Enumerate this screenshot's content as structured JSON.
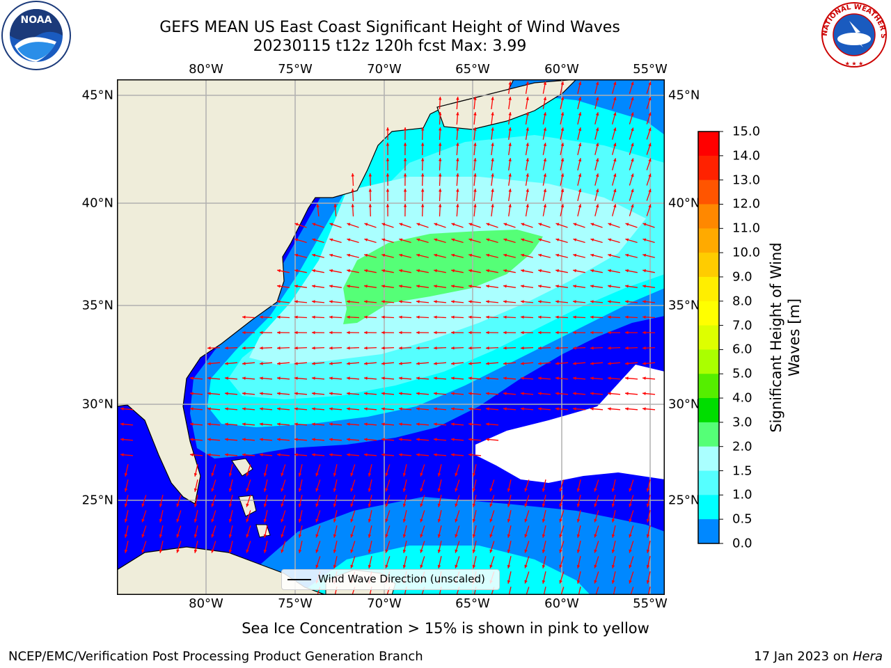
{
  "title": {
    "line1": "GEFS MEAN US East Coast Significant Height of Wind Waves",
    "line2": "20230115 t12z 120h fcst   Max: 3.99"
  },
  "axes": {
    "lon_labels": [
      "80°W",
      "75°W",
      "70°W",
      "65°W",
      "60°W",
      "55°W"
    ],
    "lat_labels": [
      "45°N",
      "40°N",
      "35°N",
      "30°N",
      "25°N"
    ]
  },
  "colorbar": {
    "title": "Significant Height of Wind Waves [m]",
    "title_line1": "Significant Height of Wind",
    "title_line2": "Waves [m]",
    "ticks": [
      "15.0",
      "14.0",
      "13.0",
      "12.0",
      "11.0",
      "10.0",
      "9.0",
      "8.0",
      "7.0",
      "6.0",
      "5.0",
      "4.0",
      "3.0",
      "2.0",
      "1.5",
      "1.0",
      "0.5",
      "0.0"
    ],
    "colors": [
      "#ff0000",
      "#ff2200",
      "#ff5500",
      "#ff8800",
      "#ffaa00",
      "#ffcc00",
      "#ffee00",
      "#ffff00",
      "#ddff00",
      "#aaff00",
      "#55ee00",
      "#00dd00",
      "#55ff77",
      "#aaffff",
      "#55ffff",
      "#00ffff",
      "#0088ff",
      "#0000ff"
    ]
  },
  "legend": {
    "label": "Wind Wave Direction (unscaled)"
  },
  "caption": "Sea Ice Concentration > 15% is shown in pink to yellow",
  "footer": {
    "left": "NCEP/EMC/Verification Post Processing Product Generation Branch",
    "right_prefix": "17 Jan 2023 on ",
    "right_italic": "Hera"
  },
  "logos": {
    "left": "NOAA",
    "right": "NATIONAL WEATHER SERVICE"
  },
  "map_colors": {
    "land": "#efedda",
    "c0": "#0000ff",
    "c05": "#0088ff",
    "c1": "#00ffff",
    "c15": "#55ffff",
    "c2": "#aaffff",
    "c3": "#55ff77",
    "arrow": "#ff0000",
    "grid": "#b0b0b0"
  }
}
